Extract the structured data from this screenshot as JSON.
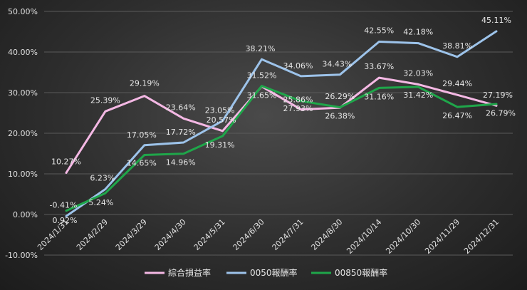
{
  "chart_data": {
    "type": "line",
    "categories": [
      "2024/1/31",
      "2024/2/29",
      "2024/3/29",
      "2024/4/30",
      "2024/5/31",
      "2024/6/30",
      "2024/7/31",
      "2024/8/30",
      "2024/10/14",
      "2024/10/30",
      "2024/11/29",
      "2024/12/31"
    ],
    "ylim": [
      -10,
      50
    ],
    "yticks": [
      -10,
      0,
      10,
      20,
      30,
      40,
      50
    ],
    "ytick_labels": [
      "-10.00%",
      "0.00%",
      "10.00%",
      "20.00%",
      "30.00%",
      "40.00%",
      "50.00%"
    ],
    "grid": true,
    "legend_position": "bottom",
    "series": [
      {
        "name": "綜合損益率",
        "color": "#f4b8e4",
        "values": [
          10.27,
          25.39,
          29.19,
          23.64,
          20.57,
          31.52,
          25.86,
          26.29,
          33.67,
          32.03,
          29.44,
          26.79
        ],
        "labels": [
          "10.27%",
          "25.39%",
          "29.19%",
          "23.64%",
          "20.57%",
          "31.52%",
          "25.86%",
          "26.29%",
          "33.67%",
          "32.03%",
          "29.44%",
          "26.79%"
        ]
      },
      {
        "name": "0050報酬率",
        "color": "#9dc3ea",
        "values": [
          -0.41,
          6.23,
          17.05,
          17.72,
          23.05,
          38.21,
          34.06,
          34.43,
          42.55,
          42.18,
          38.81,
          45.11
        ],
        "labels": [
          "-0.41%",
          "6.23%",
          "17.05%",
          "17.72%",
          "23.05%",
          "38.21%",
          "34.06%",
          "34.43%",
          "42.55%",
          "42.18%",
          "38.81%",
          "45.11%"
        ]
      },
      {
        "name": "00850報酬率",
        "color": "#1fa64a",
        "values": [
          0.92,
          5.24,
          14.65,
          14.96,
          19.31,
          31.65,
          27.93,
          26.38,
          31.16,
          31.42,
          26.47,
          27.19
        ],
        "labels": [
          "0.92%",
          "5.24%",
          "14.65%",
          "14.96%",
          "19.31%",
          "31.65%",
          "27.93%",
          "26.38%",
          "31.16%",
          "31.42%",
          "26.47%",
          "27.19%"
        ]
      }
    ]
  }
}
